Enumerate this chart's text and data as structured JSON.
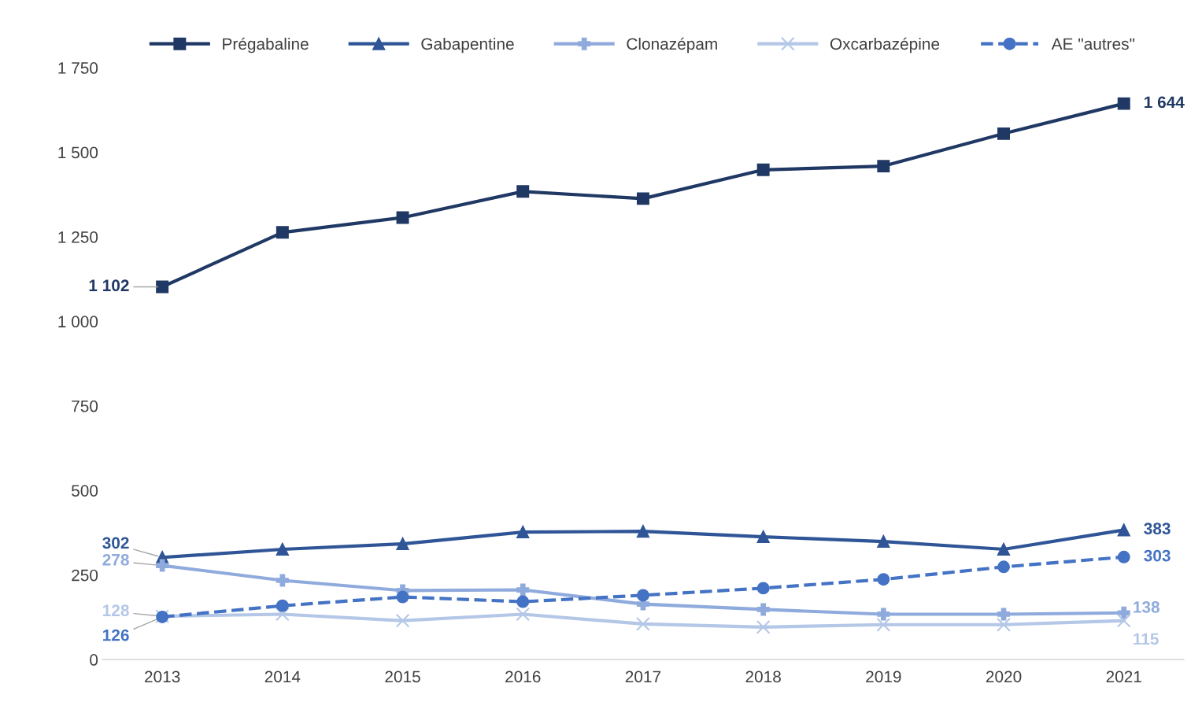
{
  "chart_data": {
    "type": "line",
    "categories": [
      "2013",
      "2014",
      "2015",
      "2016",
      "2017",
      "2018",
      "2019",
      "2020",
      "2021"
    ],
    "ylim": [
      0,
      1750
    ],
    "yticks": [
      0,
      250,
      500,
      750,
      {
        "value": 1000,
        "label": "1 000"
      },
      {
        "value": 1250,
        "label": "1 250"
      },
      {
        "value": 1500,
        "label": "1 500"
      },
      {
        "value": 1750,
        "label": "1 750"
      }
    ],
    "grid": false,
    "legend": "top",
    "series": [
      {
        "name": "Prégabaline",
        "color": "#203864",
        "marker": "square",
        "line_style": "solid",
        "values": [
          1102,
          1263,
          1307,
          1384,
          1363,
          1448,
          1459,
          1555,
          1644
        ],
        "value_labels": [
          "1 102",
          null,
          null,
          null,
          null,
          null,
          null,
          null,
          "1 644"
        ]
      },
      {
        "name": "Gabapentine",
        "color": "#2f5597",
        "marker": "triangle",
        "line_style": "solid",
        "values": [
          302,
          326,
          342,
          377,
          379,
          363,
          349,
          326,
          383
        ],
        "value_labels": [
          "302",
          null,
          null,
          null,
          null,
          null,
          null,
          null,
          "383"
        ]
      },
      {
        "name": "Clonazépam",
        "color": "#8faadc",
        "marker": "cross",
        "line_style": "solid",
        "values": [
          278,
          234,
          204,
          206,
          164,
          148,
          134,
          134,
          138
        ],
        "value_labels": [
          "278",
          null,
          null,
          null,
          null,
          null,
          null,
          null,
          "138"
        ]
      },
      {
        "name": "Oxcarbazépine",
        "color": "#b4c7e7",
        "marker": "star",
        "line_style": "solid",
        "values": [
          128,
          134,
          115,
          134,
          105,
          96,
          103,
          103,
          115
        ],
        "value_labels": [
          "128",
          null,
          null,
          null,
          null,
          null,
          null,
          null,
          "115"
        ]
      },
      {
        "name": "AE \"autres\"",
        "color": "#4472c4",
        "marker": "circle",
        "line_style": "dashed",
        "values": [
          126,
          159,
          185,
          171,
          190,
          211,
          237,
          274,
          303
        ],
        "value_labels": [
          "126",
          null,
          null,
          null,
          null,
          null,
          null,
          null,
          "303"
        ]
      }
    ]
  }
}
